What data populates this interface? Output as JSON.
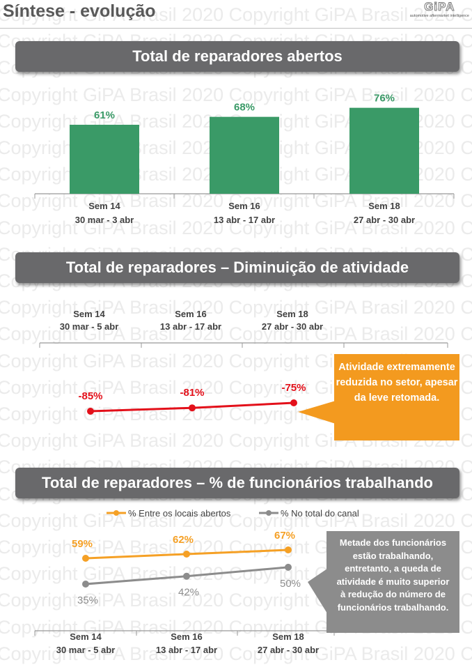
{
  "header": {
    "title": "Síntese - evolução",
    "logo_text": "GiPA",
    "logo_tagline": "automotive aftermarket intelligence"
  },
  "watermark": "Copyright GiPA Brasil 2020",
  "sections": [
    {
      "title": "Total de reparadores abertos"
    },
    {
      "title": "Total de reparadores – Diminuição de atividade",
      "callout": "Atividade extremamente reduzida no setor, apesar da leve retomada."
    },
    {
      "title": "Total de reparadores – % de funcionários trabalhando",
      "callout": "Metade dos funcionários estão trabalhando, entretanto, a queda de atividade é muito superior à redução do número de funcionários trabalhando."
    }
  ],
  "colors": {
    "green": "#3a9a67",
    "red": "#e3101a",
    "orange": "#f5a025",
    "gray": "#8c8c8c",
    "callout_orange": "#f39a1f",
    "callout_gray": "#8c8c8c"
  },
  "chart_data": [
    {
      "type": "bar",
      "title": "Total de reparadores abertos",
      "categories": [
        "Sem 14",
        "Sem 16",
        "Sem 18"
      ],
      "subcategories": [
        "30 mar - 3 abr",
        "13 abr - 17 abr",
        "27 abr - 30 abr"
      ],
      "values": [
        61,
        68,
        76
      ],
      "labels": [
        "61%",
        "68%",
        "76%"
      ]
    },
    {
      "type": "line",
      "title": "Total de reparadores – Diminuição de atividade",
      "categories": [
        "Sem 14",
        "Sem 16",
        "Sem 18"
      ],
      "subcategories": [
        "30 mar - 5 abr",
        "13 abr - 17 abr",
        "27 abr - 30 abr"
      ],
      "values": [
        -85,
        -81,
        -75
      ],
      "labels": [
        "-85%",
        "-81%",
        "-75%"
      ]
    },
    {
      "type": "line",
      "title": "Total de reparadores – % de funcionários trabalhando",
      "categories": [
        "Sem 14",
        "Sem 16",
        "Sem 18"
      ],
      "subcategories": [
        "30 mar - 5 abr",
        "13 abr - 17 abr",
        "27 abr - 30 abr"
      ],
      "legend": "top",
      "series": [
        {
          "name": "% Entre os locais abertos",
          "values": [
            59,
            62,
            67
          ],
          "labels": [
            "59%",
            "62%",
            "67%"
          ]
        },
        {
          "name": "% No total do canal",
          "values": [
            35,
            42,
            50
          ],
          "labels": [
            "35%",
            "42%",
            "50%"
          ]
        }
      ]
    }
  ]
}
